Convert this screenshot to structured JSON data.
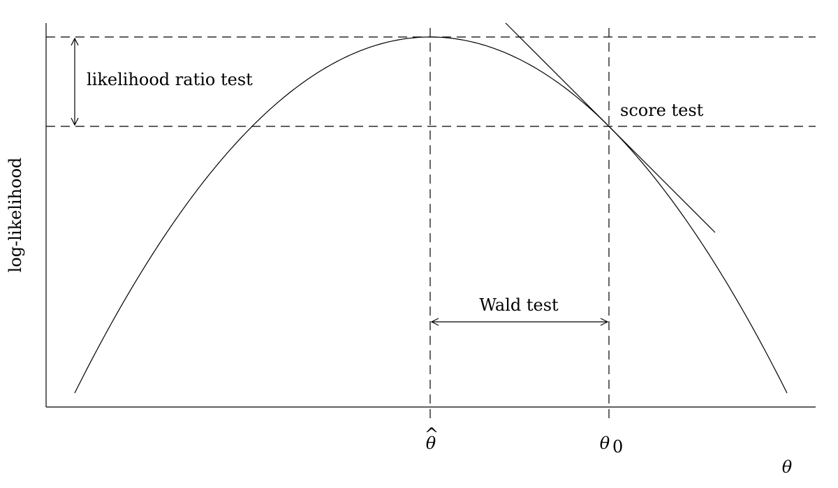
{
  "y_axis_label": "log-likelihood",
  "x_axis_label": "θ",
  "tick_labels": {
    "theta_hat_base": "θ",
    "theta_hat_accent": "^",
    "theta_zero_base": "θ",
    "theta_zero_subscript": "0"
  },
  "annotations": {
    "likelihood_ratio": "likelihood ratio test",
    "score": "score test",
    "wald": "Wald test"
  },
  "colors": {
    "ink": "#000000",
    "background": "#ffffff"
  }
}
